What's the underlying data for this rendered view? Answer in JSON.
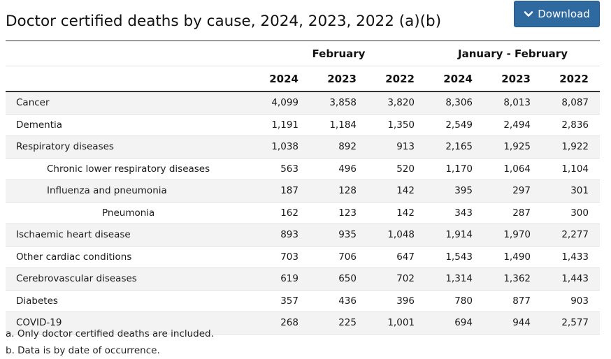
{
  "title": "Doctor certified deaths by cause, 2024, 2023, 2022 (a)(b)",
  "download_label": "Download",
  "table": {
    "groups": [
      "February",
      "January - February"
    ],
    "years": [
      "2024",
      "2023",
      "2022",
      "2024",
      "2023",
      "2022"
    ],
    "rows": [
      {
        "label": "Cancer",
        "level": 0,
        "values": [
          "4,099",
          "3,858",
          "3,820",
          "8,306",
          "8,013",
          "8,087"
        ]
      },
      {
        "label": "Dementia",
        "level": 0,
        "values": [
          "1,191",
          "1,184",
          "1,350",
          "2,549",
          "2,494",
          "2,836"
        ]
      },
      {
        "label": "Respiratory diseases",
        "level": 0,
        "values": [
          "1,038",
          "892",
          "913",
          "2,165",
          "1,925",
          "1,922"
        ]
      },
      {
        "label": "Chronic lower respiratory diseases",
        "level": 1,
        "values": [
          "563",
          "496",
          "520",
          "1,170",
          "1,064",
          "1,104"
        ]
      },
      {
        "label": "Influenza and pneumonia",
        "level": 1,
        "values": [
          "187",
          "128",
          "142",
          "395",
          "297",
          "301"
        ]
      },
      {
        "label": "Pneumonia",
        "level": 2,
        "values": [
          "162",
          "123",
          "142",
          "343",
          "287",
          "300"
        ]
      },
      {
        "label": "Ischaemic heart disease",
        "level": 0,
        "values": [
          "893",
          "935",
          "1,048",
          "1,914",
          "1,970",
          "2,277"
        ]
      },
      {
        "label": "Other cardiac conditions",
        "level": 0,
        "values": [
          "703",
          "706",
          "647",
          "1,543",
          "1,490",
          "1,433"
        ]
      },
      {
        "label": "Cerebrovascular diseases",
        "level": 0,
        "values": [
          "619",
          "650",
          "702",
          "1,314",
          "1,362",
          "1,443"
        ]
      },
      {
        "label": "Diabetes",
        "level": 0,
        "values": [
          "357",
          "436",
          "396",
          "780",
          "877",
          "903"
        ]
      },
      {
        "label": "COVID-19",
        "level": 0,
        "values": [
          "268",
          "225",
          "1,001",
          "694",
          "944",
          "2,577"
        ]
      }
    ]
  },
  "notes": [
    "a. Only doctor certified deaths are included.",
    "b. Data is by date of occurrence."
  ]
}
